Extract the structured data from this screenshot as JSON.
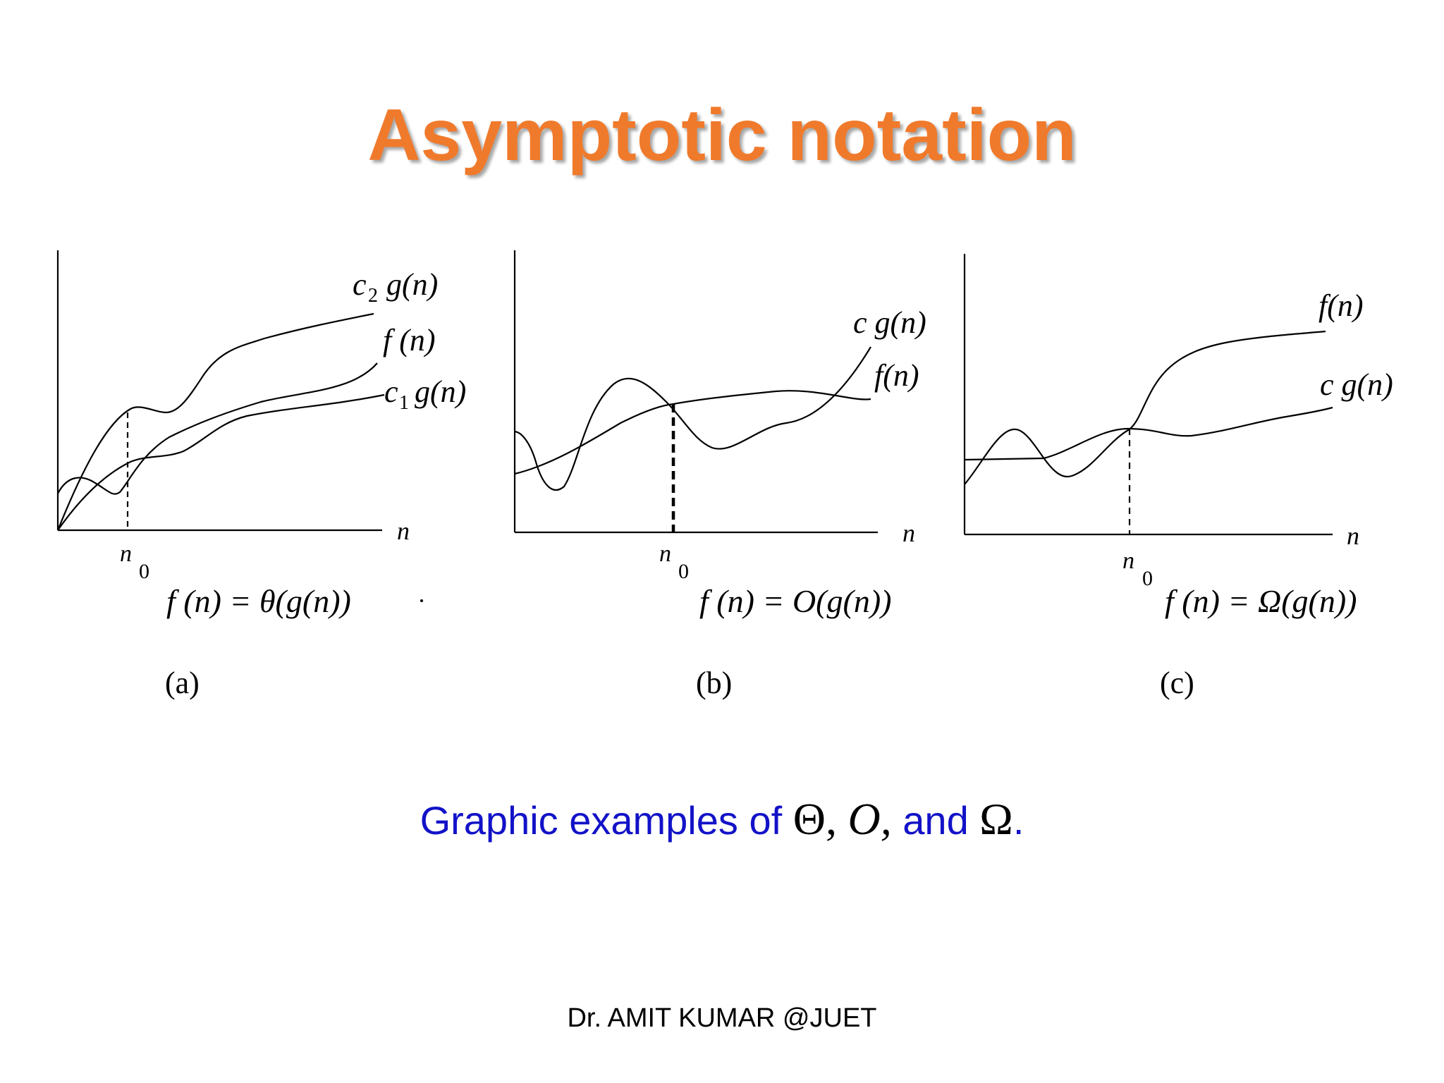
{
  "title": "Asymptotic notation",
  "colors": {
    "title": "#f07a2c",
    "caption": "#1212c8",
    "ink": "#000000"
  },
  "panels": [
    {
      "id": "a",
      "curve_labels": {
        "upper_c": "c",
        "upper_sub": "2",
        "upper_fn": "g(n)",
        "middle": "f (n)",
        "lower_c": "c",
        "lower_sub": "1",
        "lower_fn": "g(n)"
      },
      "axis_label": "n",
      "n0_label": "n",
      "n0_sub": "0",
      "formula": "f (n) = θ(g(n))",
      "caption": "(a)"
    },
    {
      "id": "b",
      "curve_labels": {
        "upper": "c g(n)",
        "lower": "f(n)"
      },
      "axis_label": "n",
      "n0_label": "n",
      "n0_sub": "0",
      "formula": "f (n) = O(g(n))",
      "caption": "(b)"
    },
    {
      "id": "c",
      "curve_labels": {
        "upper": "f(n)",
        "lower": "c g(n)"
      },
      "axis_label": "n",
      "n0_label": "n",
      "n0_sub": "0",
      "formula": "f (n) = Ω(g(n))",
      "caption": "(c)"
    }
  ],
  "caption": {
    "prefix": "Graphic examples of",
    "theta": "Θ,",
    "big_o": "O,",
    "and": "and",
    "omega": "Ω",
    "period": "."
  },
  "footer": "Dr. AMIT KUMAR @JUET"
}
